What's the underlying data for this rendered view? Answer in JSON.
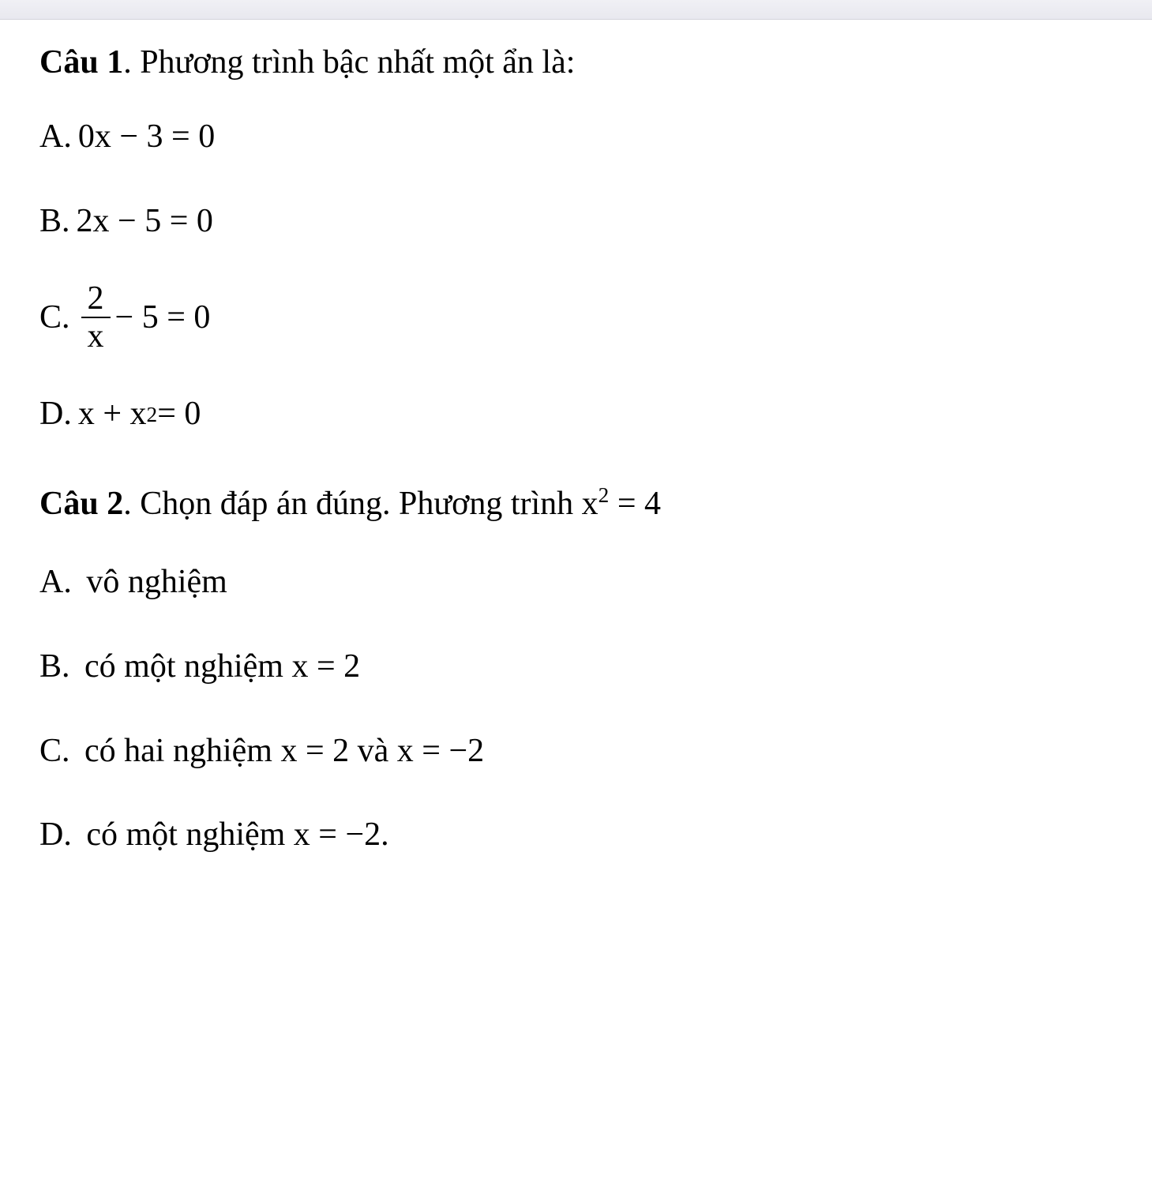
{
  "question1": {
    "label": "Câu 1",
    "text": ". Phương trình bậc nhất một ẩn là:",
    "options": {
      "A": {
        "label": "A.",
        "equation": "0x − 3 = 0"
      },
      "B": {
        "label": "B.",
        "equation": " 2x − 5 = 0"
      },
      "C": {
        "label": "C.",
        "frac_num": "2",
        "frac_den": "x",
        "rest": "− 5 = 0"
      },
      "D": {
        "label": "D.",
        "pre": "x + x",
        "sup": "2",
        "post": " = 0"
      }
    }
  },
  "question2": {
    "label": "Câu 2",
    "text_pre": ". Chọn đáp án đúng. Phương trình x",
    "sup": "2",
    "text_post": " =  4",
    "options": {
      "A": {
        "label": "A.",
        "text": "vô nghiệm"
      },
      "B": {
        "label": "B.",
        "text": "có một nghiệm x = 2"
      },
      "C": {
        "label": "C.",
        "text": "có hai nghiệm x = 2 và x = −2"
      },
      "D": {
        "label": "D.",
        "text": "có một nghiệm x = −2."
      }
    }
  },
  "styling": {
    "font_family": "Times New Roman",
    "font_size_pt": 32,
    "text_color": "#000000",
    "background_color": "#ffffff",
    "browser_bar_color": "#e8e8ef",
    "question_label_weight": "bold"
  }
}
